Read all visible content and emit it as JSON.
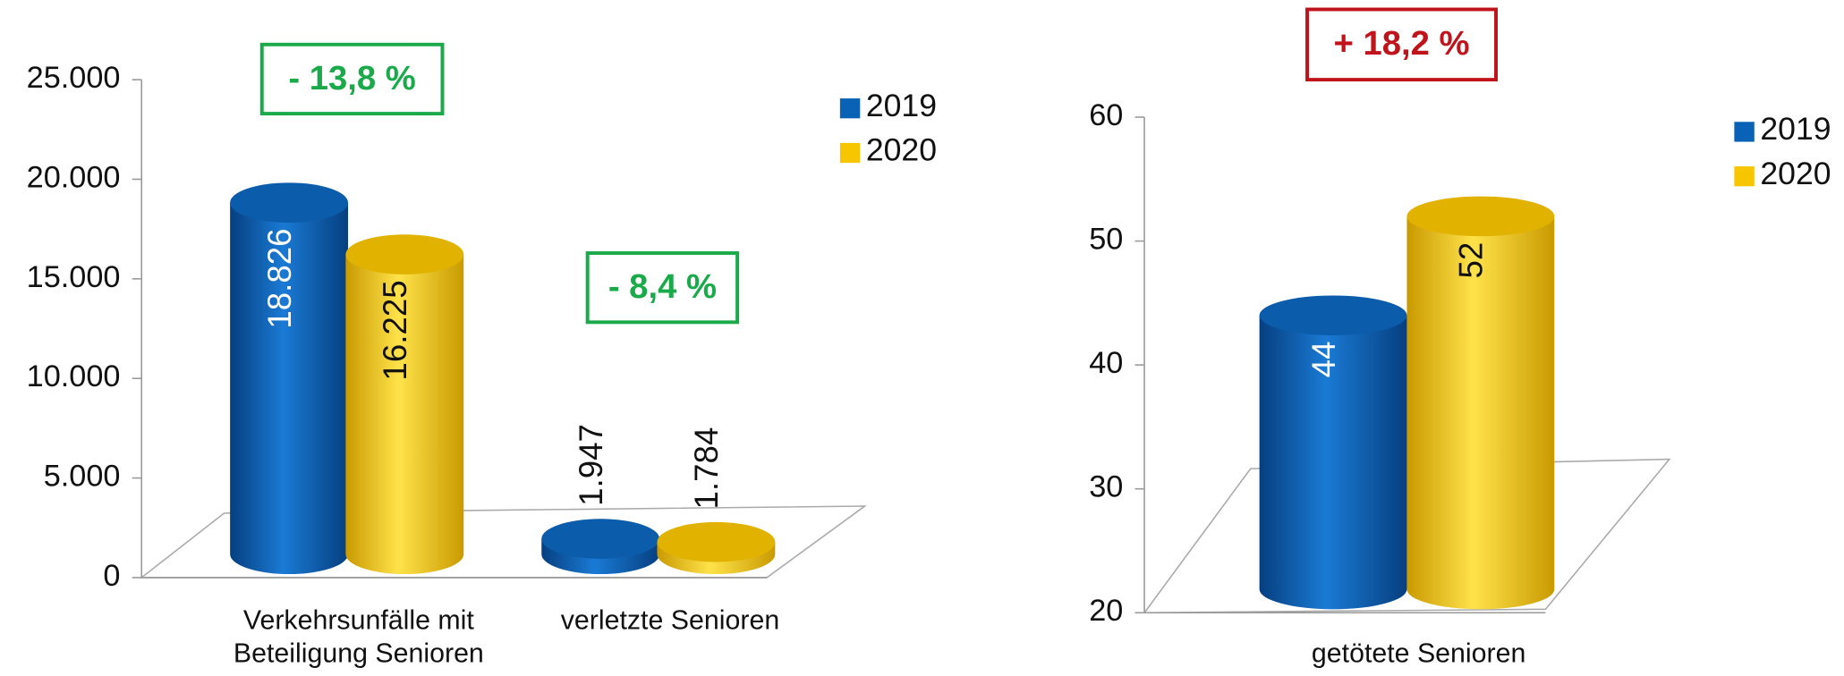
{
  "chart_data": [
    {
      "type": "bar3d",
      "categories": [
        "Verkehrsunfälle mit Beteiligung Senioren",
        "verletzte Senioren"
      ],
      "series": [
        {
          "name": "2019",
          "color": "#0a62b6",
          "values": [
            18826,
            1947
          ],
          "value_labels": [
            "18.826",
            "1.947"
          ]
        },
        {
          "name": "2020",
          "color": "#f7c600",
          "values": [
            16225,
            1784
          ],
          "value_labels": [
            "16.225",
            "1.784"
          ]
        }
      ],
      "ylim": [
        0,
        25000
      ],
      "yticks": [
        0,
        {
          "value": 5000,
          "label": "5.000"
        },
        {
          "value": 10000,
          "label": "10.000"
        },
        {
          "value": 15000,
          "label": "15.000"
        },
        {
          "value": 20000,
          "label": "20.000"
        },
        {
          "value": 25000,
          "label": "25.000"
        }
      ],
      "annotations": [
        {
          "text": "- 13,8 %",
          "color": "#1aaa4a"
        },
        {
          "text": "- 8,4 %",
          "color": "#1aaa4a"
        }
      ],
      "legend": "top-right"
    },
    {
      "type": "bar3d",
      "categories": [
        "getötete Senioren"
      ],
      "series": [
        {
          "name": "2019",
          "color": "#0a62b6",
          "values": [
            44
          ]
        },
        {
          "name": "2020",
          "color": "#f7c600",
          "values": [
            52
          ]
        }
      ],
      "ylim": [
        20,
        60
      ],
      "yticks": [
        20,
        30,
        40,
        50,
        60
      ],
      "annotations": [
        {
          "text": "+ 18,2 %",
          "color": "#c0141c"
        }
      ],
      "legend": "top-right"
    }
  ]
}
